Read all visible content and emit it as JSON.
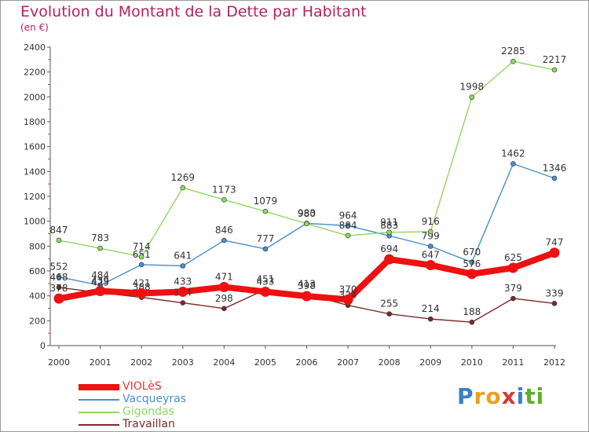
{
  "title": "Evolution du Montant de la Dette par Habitant",
  "subtitle": "(en €)",
  "logo": {
    "text": "Proxiti",
    "colors": [
      "#3a7fc4",
      "#e8a020",
      "#e8a020",
      "#d63a3a",
      "#3a7fc4",
      "#5fae2e",
      "#5fae2e"
    ]
  },
  "chart_data": {
    "type": "line",
    "x": [
      "2000",
      "2001",
      "2002",
      "2003",
      "2004",
      "2005",
      "2006",
      "2007",
      "2008",
      "2009",
      "2010",
      "2011",
      "2012"
    ],
    "ylim": [
      0,
      2400
    ],
    "yticks": [
      0,
      200,
      400,
      600,
      800,
      1000,
      1200,
      1400,
      1600,
      1800,
      2000,
      2200,
      2400
    ],
    "grid": false,
    "legend": "bottom-left",
    "series": [
      {
        "name": "VIOLèS",
        "color": "#ee1111",
        "width": 8,
        "values": [
          378,
          439,
          421,
          433,
          471,
          433,
          398,
          370,
          694,
          647,
          576,
          625,
          747
        ]
      },
      {
        "name": "Vacqueyras",
        "color": "#4a8fcb",
        "width": 1.4,
        "values": [
          552,
          484,
          651,
          641,
          846,
          777,
          983,
          964,
          883,
          799,
          670,
          1462,
          1346
        ]
      },
      {
        "name": "Gigondas",
        "color": "#90d763",
        "width": 1.4,
        "values": [
          847,
          783,
          714,
          1269,
          1173,
          1079,
          980,
          884,
          911,
          916,
          1998,
          2285,
          2217
        ]
      },
      {
        "name": "Travaillan",
        "color": "#7a2a2a",
        "width": 1.4,
        "values": [
          468,
          425,
          388,
          344,
          298,
          451,
          413,
          324,
          255,
          214,
          188,
          379,
          339
        ]
      }
    ]
  }
}
